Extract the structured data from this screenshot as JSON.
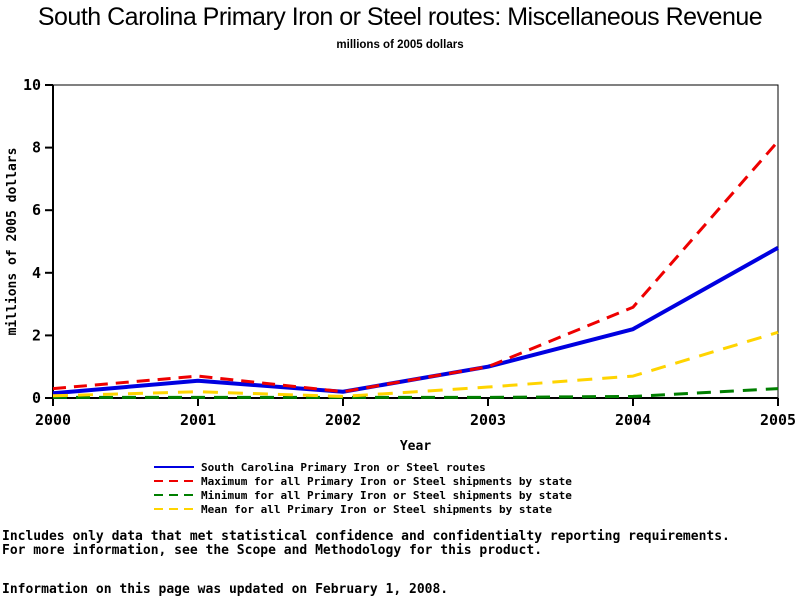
{
  "page": {
    "title": "South Carolina Primary Iron or Steel routes: Miscellaneous Revenue",
    "subtitle": "millions of 2005 dollars"
  },
  "chart_data": {
    "type": "line",
    "title": "South Carolina Primary Iron or Steel routes: Miscellaneous Revenue",
    "subtitle": "millions of 2005 dollars",
    "xlabel": "Year",
    "ylabel": "millions of 2005 dollars",
    "x": [
      2000,
      2001,
      2002,
      2003,
      2004,
      2005
    ],
    "ylim": [
      0,
      10
    ],
    "yticks": [
      0,
      2,
      4,
      6,
      8,
      10
    ],
    "grid": false,
    "legend_position": "bottom",
    "series": [
      {
        "name": "South Carolina Primary Iron or Steel routes",
        "color": "#0000E0",
        "style": "solid",
        "values": [
          0.15,
          0.55,
          0.2,
          1.0,
          2.2,
          4.8
        ]
      },
      {
        "name": "Maximum for all Primary Iron or Steel shipments by state",
        "color": "#EE0000",
        "style": "dashed",
        "values": [
          0.3,
          0.7,
          0.2,
          1.0,
          2.9,
          8.2
        ]
      },
      {
        "name": "Minimum for all Primary Iron or Steel shipments by state",
        "color": "#007F00",
        "style": "dashed",
        "values": [
          0.02,
          0.02,
          0.02,
          0.02,
          0.05,
          0.3
        ]
      },
      {
        "name": "Mean for all Primary Iron or Steel shipments by state",
        "color": "#FFD400",
        "style": "dashed",
        "values": [
          0.07,
          0.2,
          0.05,
          0.35,
          0.7,
          2.1
        ]
      }
    ]
  },
  "footnotes": {
    "line1": "Includes only data that met statistical confidence and confidentialty reporting requirements.",
    "line2": "For more information, see the Scope and Methodology for this product.",
    "updated": "Information on this page was updated on February 1, 2008."
  }
}
